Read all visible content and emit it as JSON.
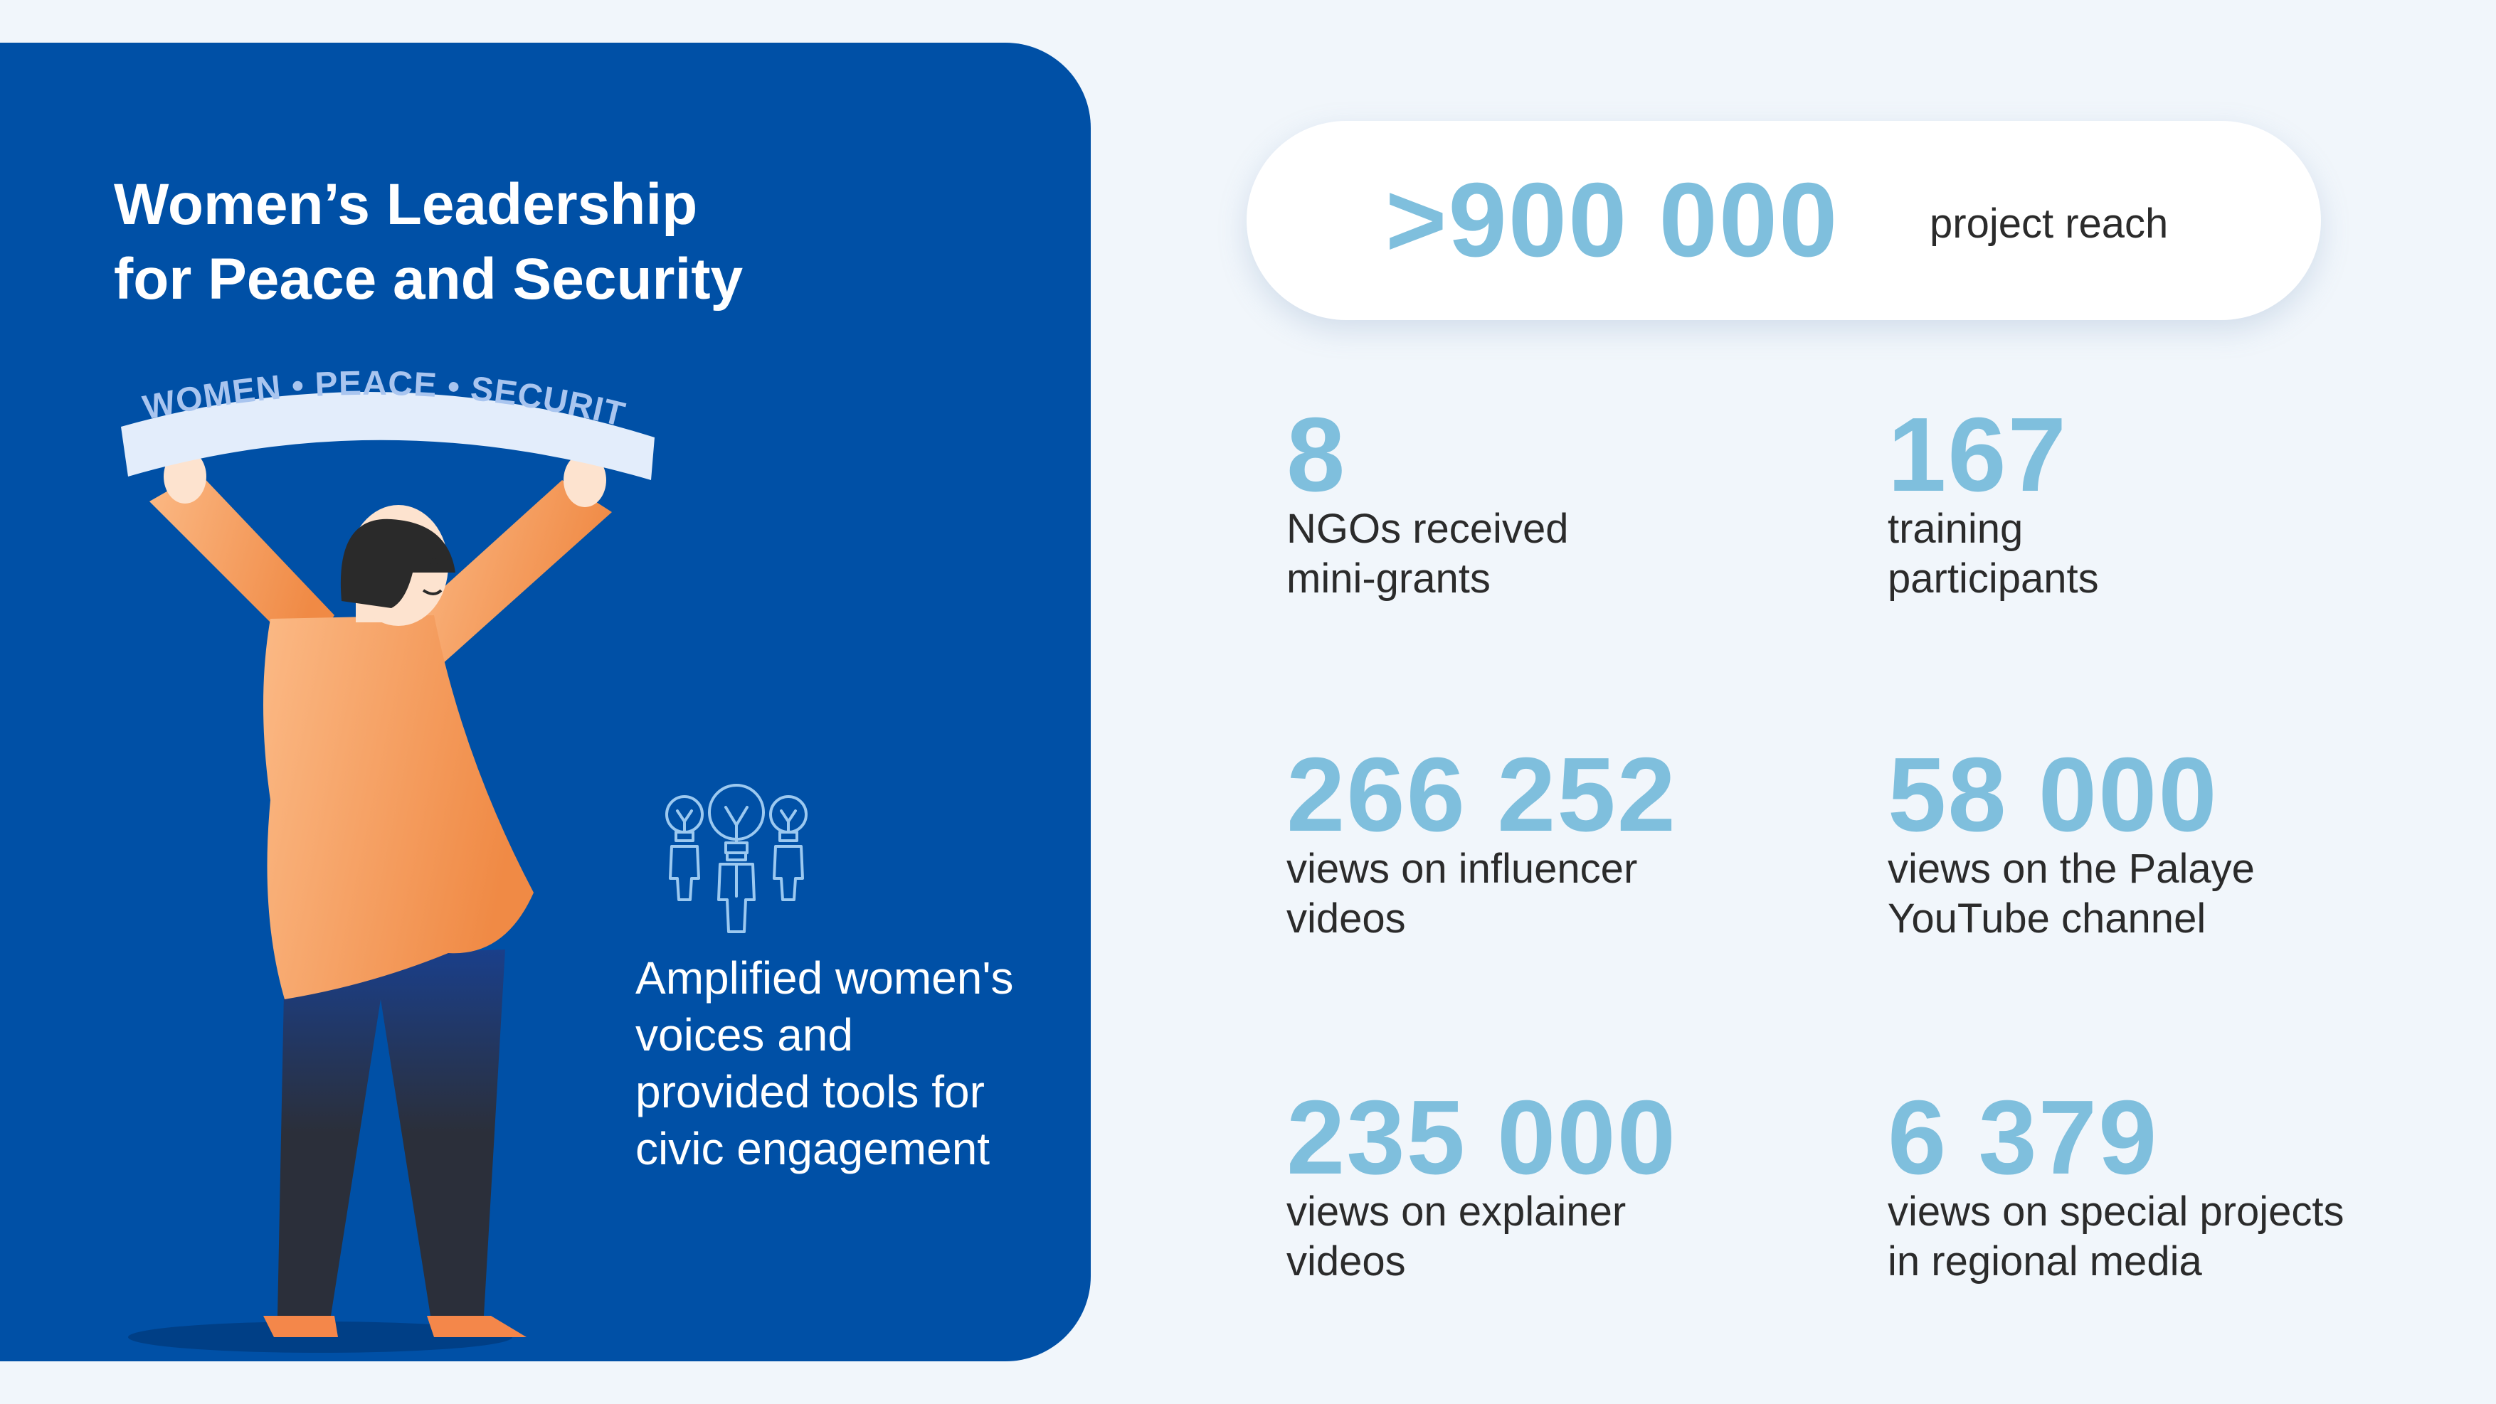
{
  "panel": {
    "title": "Women’s Leadership\nfor Peace and Security",
    "banner_text": "WOMEN • PEACE • SECURITY",
    "caption": "Amplified women's voices and provided tools for civic engagement"
  },
  "reach": {
    "value": ">900 000",
    "label": "project reach"
  },
  "stats": [
    {
      "value": "8",
      "label": "NGOs received\nmini-grants"
    },
    {
      "value": "167",
      "label": "training\nparticipants"
    },
    {
      "value": "266 252",
      "label": "views on influencer\nvideos"
    },
    {
      "value": "58 000",
      "label": "views on the Palaye\nYouTube channel"
    },
    {
      "value": "235 000",
      "label": "views on explainer\nvideos"
    },
    {
      "value": "6 379",
      "label": "views on special projects\nin regional media"
    }
  ],
  "colors": {
    "panel_bg": "#0050a6",
    "page_bg": "#f1f6fb",
    "accent_number": "#7fbfdd",
    "figure_orange": "#f7a36b"
  }
}
